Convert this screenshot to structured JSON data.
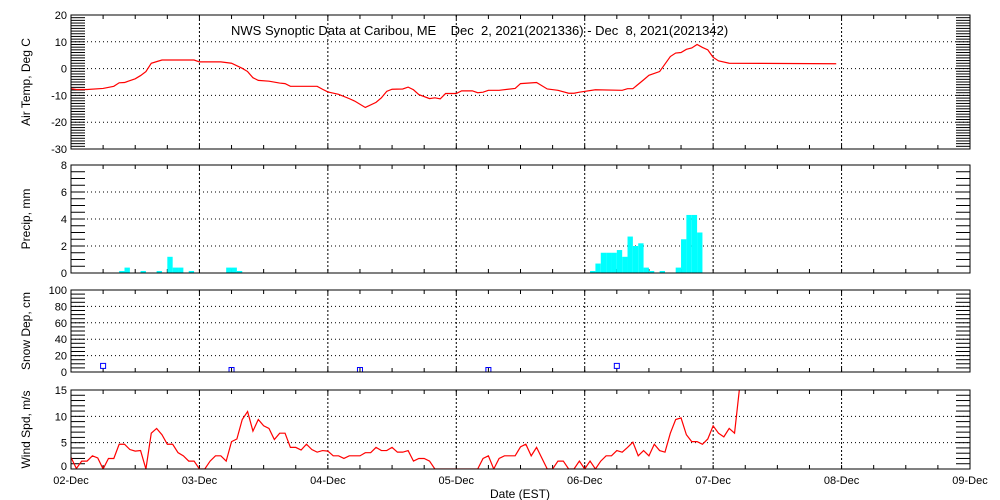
{
  "chart_data": {
    "type": "line",
    "title": "NWS Synoptic Data at Caribou, ME    Dec  2, 2021(2021336) - Dec  8, 2021(2021342)",
    "xlabel": "Date (EST)",
    "xlim": [
      "2021-12-02T00:00",
      "2021-12-09T00:00"
    ],
    "xtick_labels": [
      "02-Dec",
      "03-Dec",
      "04-Dec",
      "05-Dec",
      "06-Dec",
      "07-Dec",
      "08-Dec",
      "09-Dec"
    ],
    "grid": true,
    "colors": {
      "temp": "#ff0000",
      "precip": "#00ffff",
      "snow": "#0000ff",
      "wind": "#ff0000"
    },
    "panels": [
      {
        "id": "temp",
        "type": "line",
        "ylabel": "Air Temp, Deg C",
        "ylim": [
          -30,
          20
        ],
        "yticks": [
          "-30",
          "-20",
          "-10",
          "0",
          "10",
          "20"
        ],
        "minor_step": 1,
        "points": [
          [
            "2021-12-02T00:00",
            -7.5
          ],
          [
            "2021-12-02T01:00",
            -7.8
          ],
          [
            "2021-12-02T03:00",
            -7.8
          ],
          [
            "2021-12-02T06:00",
            -7.4
          ],
          [
            "2021-12-02T08:00",
            -6.6
          ],
          [
            "2021-12-02T09:00",
            -5.3
          ],
          [
            "2021-12-02T10:00",
            -5.2
          ],
          [
            "2021-12-02T12:00",
            -3.8
          ],
          [
            "2021-12-02T13:00",
            -2.6
          ],
          [
            "2021-12-02T14:00",
            -1.1
          ],
          [
            "2021-12-02T15:00",
            2.0
          ],
          [
            "2021-12-02T16:00",
            2.6
          ],
          [
            "2021-12-02T17:00",
            3.2
          ],
          [
            "2021-12-02T23:00",
            3.2
          ],
          [
            "2021-12-03T00:00",
            2.5
          ],
          [
            "2021-12-03T04:00",
            2.5
          ],
          [
            "2021-12-03T06:00",
            2.0
          ],
          [
            "2021-12-03T08:00",
            0.1
          ],
          [
            "2021-12-03T09:00",
            -1.1
          ],
          [
            "2021-12-03T10:00",
            -3.4
          ],
          [
            "2021-12-03T11:00",
            -4.4
          ],
          [
            "2021-12-03T13:00",
            -4.7
          ],
          [
            "2021-12-03T15:00",
            -5.4
          ],
          [
            "2021-12-03T16:00",
            -5.6
          ],
          [
            "2021-12-03T17:00",
            -6.6
          ],
          [
            "2021-12-03T22:00",
            -6.6
          ],
          [
            "2021-12-03T23:00",
            -7.7
          ],
          [
            "2021-12-04T00:00",
            -8.7
          ],
          [
            "2021-12-04T02:00",
            -9.6
          ],
          [
            "2021-12-04T04:00",
            -11.2
          ],
          [
            "2021-12-04T05:00",
            -12.1
          ],
          [
            "2021-12-04T07:00",
            -14.5
          ],
          [
            "2021-12-04T09:00",
            -12.6
          ],
          [
            "2021-12-04T10:00",
            -10.9
          ],
          [
            "2021-12-04T11:00",
            -8.5
          ],
          [
            "2021-12-04T12:00",
            -7.7
          ],
          [
            "2021-12-04T14:00",
            -7.6
          ],
          [
            "2021-12-04T15:00",
            -6.9
          ],
          [
            "2021-12-04T16:00",
            -7.9
          ],
          [
            "2021-12-04T17:00",
            -9.7
          ],
          [
            "2021-12-04T19:00",
            -11.2
          ],
          [
            "2021-12-04T20:00",
            -10.9
          ],
          [
            "2021-12-04T21:00",
            -11.3
          ],
          [
            "2021-12-04T22:00",
            -9.3
          ],
          [
            "2021-12-05T00:00",
            -9.3
          ],
          [
            "2021-12-05T01:00",
            -8.3
          ],
          [
            "2021-12-05T03:00",
            -8.3
          ],
          [
            "2021-12-05T04:00",
            -9.0
          ],
          [
            "2021-12-05T05:00",
            -8.8
          ],
          [
            "2021-12-05T06:00",
            -8.1
          ],
          [
            "2021-12-05T08:00",
            -8.1
          ],
          [
            "2021-12-05T11:00",
            -7.4
          ],
          [
            "2021-12-05T12:00",
            -5.6
          ],
          [
            "2021-12-05T15:00",
            -5.2
          ],
          [
            "2021-12-05T17:00",
            -7.6
          ],
          [
            "2021-12-05T19:00",
            -8.1
          ],
          [
            "2021-12-05T21:00",
            -9.2
          ],
          [
            "2021-12-05T22:00",
            -9.2
          ],
          [
            "2021-12-05T23:00",
            -8.8
          ],
          [
            "2021-12-06T02:00",
            -7.9
          ],
          [
            "2021-12-06T07:00",
            -8.1
          ],
          [
            "2021-12-06T08:00",
            -7.5
          ],
          [
            "2021-12-06T09:00",
            -7.5
          ],
          [
            "2021-12-06T11:00",
            -4.2
          ],
          [
            "2021-12-06T12:00",
            -2.5
          ],
          [
            "2021-12-06T14:00",
            -1.1
          ],
          [
            "2021-12-06T16:00",
            4.5
          ],
          [
            "2021-12-06T17:00",
            5.8
          ],
          [
            "2021-12-06T18:00",
            6.0
          ],
          [
            "2021-12-06T19:00",
            7.2
          ],
          [
            "2021-12-06T20:00",
            7.7
          ],
          [
            "2021-12-06T21:00",
            9.0
          ],
          [
            "2021-12-06T22:00",
            7.9
          ],
          [
            "2021-12-06T23:00",
            7.0
          ],
          [
            "2021-12-07T00:00",
            4.2
          ],
          [
            "2021-12-07T01:00",
            2.9
          ],
          [
            "2021-12-07T03:00",
            2.0
          ],
          [
            "2021-12-07T23:00",
            1.8
          ]
        ]
      },
      {
        "id": "precip",
        "type": "bar",
        "ylabel": "Precip, mm",
        "ylim": [
          0,
          8
        ],
        "yticks": [
          "0",
          "2",
          "4",
          "6",
          "8"
        ],
        "minor_step": 0.5,
        "points": [
          [
            "2021-12-02T09:00",
            0.15
          ],
          [
            "2021-12-02T10:00",
            0.4
          ],
          [
            "2021-12-02T13:00",
            0.15
          ],
          [
            "2021-12-02T16:00",
            0.15
          ],
          [
            "2021-12-02T18:00",
            1.2
          ],
          [
            "2021-12-02T19:00",
            0.4
          ],
          [
            "2021-12-02T20:00",
            0.4
          ],
          [
            "2021-12-02T22:00",
            0.15
          ],
          [
            "2021-12-03T05:00",
            0.4
          ],
          [
            "2021-12-03T06:00",
            0.4
          ],
          [
            "2021-12-03T07:00",
            0.15
          ],
          [
            "2021-12-06T01:00",
            0.15
          ],
          [
            "2021-12-06T02:00",
            0.7
          ],
          [
            "2021-12-06T03:00",
            1.5
          ],
          [
            "2021-12-06T04:00",
            1.5
          ],
          [
            "2021-12-06T05:00",
            1.5
          ],
          [
            "2021-12-06T06:00",
            1.7
          ],
          [
            "2021-12-06T07:00",
            1.2
          ],
          [
            "2021-12-06T08:00",
            2.7
          ],
          [
            "2021-12-06T09:00",
            2.0
          ],
          [
            "2021-12-06T10:00",
            2.2
          ],
          [
            "2021-12-06T11:00",
            0.4
          ],
          [
            "2021-12-06T12:00",
            0.15
          ],
          [
            "2021-12-06T14:00",
            0.15
          ],
          [
            "2021-12-06T17:00",
            0.4
          ],
          [
            "2021-12-06T18:00",
            2.5
          ],
          [
            "2021-12-06T19:00",
            4.3
          ],
          [
            "2021-12-06T20:00",
            4.3
          ],
          [
            "2021-12-06T21:00",
            3.0
          ]
        ]
      },
      {
        "id": "snow",
        "type": "scatter",
        "ylabel": "Snow Dep, cm",
        "ylim": [
          0,
          100
        ],
        "yticks": [
          "0",
          "20",
          "40",
          "60",
          "80",
          "100"
        ],
        "minor_step": 5,
        "points": [
          [
            "2021-12-02T06:00",
            5
          ],
          [
            "2021-12-03T06:00",
            0
          ],
          [
            "2021-12-04T06:00",
            0
          ],
          [
            "2021-12-05T06:00",
            0
          ],
          [
            "2021-12-06T06:00",
            5
          ]
        ]
      },
      {
        "id": "wind",
        "type": "line",
        "ylabel": "Wind Spd, m/s",
        "ylim": [
          0,
          15
        ],
        "yticks": [
          "0",
          "5",
          "10",
          "15"
        ],
        "minor_step": 1,
        "points": [
          [
            "2021-12-02T00:00",
            2.2
          ],
          [
            "2021-12-02T01:00",
            0.1
          ],
          [
            "2021-12-02T02:00",
            1.5
          ],
          [
            "2021-12-02T03:00",
            1.5
          ],
          [
            "2021-12-02T04:00",
            2.5
          ],
          [
            "2021-12-02T05:00",
            2.1
          ],
          [
            "2021-12-02T06:00",
            0
          ],
          [
            "2021-12-02T07:00",
            2.0
          ],
          [
            "2021-12-02T08:00",
            2.0
          ],
          [
            "2021-12-02T09:00",
            4.7
          ],
          [
            "2021-12-02T10:00",
            4.7
          ],
          [
            "2021-12-02T11:00",
            3.7
          ],
          [
            "2021-12-02T12:00",
            3.4
          ],
          [
            "2021-12-02T13:00",
            3.5
          ],
          [
            "2021-12-02T14:00",
            0
          ],
          [
            "2021-12-02T15:00",
            6.8
          ],
          [
            "2021-12-02T16:00",
            7.7
          ],
          [
            "2021-12-02T17:00",
            6.5
          ],
          [
            "2021-12-02T18:00",
            4.7
          ],
          [
            "2021-12-02T19:00",
            4.7
          ],
          [
            "2021-12-02T20:00",
            3.1
          ],
          [
            "2021-12-02T21:00",
            2.5
          ],
          [
            "2021-12-02T22:00",
            1.5
          ],
          [
            "2021-12-02T23:00",
            1.5
          ],
          [
            "2021-12-03T00:00",
            0
          ],
          [
            "2021-12-03T01:00",
            0
          ],
          [
            "2021-12-03T02:00",
            1.5
          ],
          [
            "2021-12-03T03:00",
            2.5
          ],
          [
            "2021-12-03T04:00",
            2.5
          ],
          [
            "2021-12-03T05:00",
            1.5
          ],
          [
            "2021-12-03T06:00",
            5.2
          ],
          [
            "2021-12-03T07:00",
            5.7
          ],
          [
            "2021-12-03T08:00",
            9.4
          ],
          [
            "2021-12-03T09:00",
            10.9
          ],
          [
            "2021-12-03T10:00",
            7.2
          ],
          [
            "2021-12-03T11:00",
            9.4
          ],
          [
            "2021-12-03T12:00",
            8.2
          ],
          [
            "2021-12-03T13:00",
            7.7
          ],
          [
            "2021-12-03T14:00",
            5.6
          ],
          [
            "2021-12-03T15:00",
            6.8
          ],
          [
            "2021-12-03T16:00",
            6.8
          ],
          [
            "2021-12-03T17:00",
            4.1
          ],
          [
            "2021-12-03T18:00",
            4.1
          ],
          [
            "2021-12-03T19:00",
            3.6
          ],
          [
            "2021-12-03T20:00",
            4.7
          ],
          [
            "2021-12-03T21:00",
            3.7
          ],
          [
            "2021-12-03T22:00",
            3.2
          ],
          [
            "2021-12-03T23:00",
            3.5
          ],
          [
            "2021-12-04T00:00",
            3.4
          ],
          [
            "2021-12-04T01:00",
            2.5
          ],
          [
            "2021-12-04T02:00",
            2.5
          ],
          [
            "2021-12-04T03:00",
            2.0
          ],
          [
            "2021-12-04T04:00",
            2.5
          ],
          [
            "2021-12-04T06:00",
            2.5
          ],
          [
            "2021-12-04T07:00",
            3.1
          ],
          [
            "2021-12-04T08:00",
            3.1
          ],
          [
            "2021-12-04T09:00",
            4.1
          ],
          [
            "2021-12-04T10:00",
            3.5
          ],
          [
            "2021-12-04T11:00",
            3.5
          ],
          [
            "2021-12-04T12:00",
            4.1
          ],
          [
            "2021-12-04T13:00",
            3.2
          ],
          [
            "2021-12-04T14:00",
            3.2
          ],
          [
            "2021-12-04T15:00",
            3.5
          ],
          [
            "2021-12-04T16:00",
            1.5
          ],
          [
            "2021-12-04T17:00",
            2.0
          ],
          [
            "2021-12-04T18:00",
            2.0
          ],
          [
            "2021-12-04T19:00",
            1.5
          ],
          [
            "2021-12-04T20:00",
            0
          ],
          [
            "2021-12-05T04:00",
            0
          ],
          [
            "2021-12-05T05:00",
            2.0
          ],
          [
            "2021-12-05T06:00",
            2.5
          ],
          [
            "2021-12-05T07:00",
            0
          ],
          [
            "2021-12-05T08:00",
            2.0
          ],
          [
            "2021-12-05T09:00",
            2.5
          ],
          [
            "2021-12-05T11:00",
            2.5
          ],
          [
            "2021-12-05T12:00",
            4.2
          ],
          [
            "2021-12-05T13:00",
            4.7
          ],
          [
            "2021-12-05T14:00",
            2.5
          ],
          [
            "2021-12-05T15:00",
            4.1
          ],
          [
            "2021-12-05T17:00",
            0
          ],
          [
            "2021-12-05T18:00",
            0
          ],
          [
            "2021-12-05T19:00",
            1.5
          ],
          [
            "2021-12-05T20:00",
            1.5
          ],
          [
            "2021-12-05T21:00",
            0
          ],
          [
            "2021-12-05T22:00",
            0
          ],
          [
            "2021-12-05T23:00",
            1.5
          ],
          [
            "2021-12-06T00:00",
            0
          ],
          [
            "2021-12-06T01:00",
            1.5
          ],
          [
            "2021-12-06T02:00",
            0
          ],
          [
            "2021-12-06T03:00",
            1.5
          ],
          [
            "2021-12-06T04:00",
            2.5
          ],
          [
            "2021-12-06T05:00",
            2.5
          ],
          [
            "2021-12-06T06:00",
            3.5
          ],
          [
            "2021-12-06T07:00",
            3.2
          ],
          [
            "2021-12-06T08:00",
            4.1
          ],
          [
            "2021-12-06T09:00",
            5.1
          ],
          [
            "2021-12-06T10:00",
            2.5
          ],
          [
            "2021-12-06T11:00",
            3.5
          ],
          [
            "2021-12-06T12:00",
            2.5
          ],
          [
            "2021-12-06T13:00",
            4.7
          ],
          [
            "2021-12-06T14:00",
            3.5
          ],
          [
            "2021-12-06T15:00",
            3.2
          ],
          [
            "2021-12-06T16:00",
            6.8
          ],
          [
            "2021-12-06T17:00",
            9.4
          ],
          [
            "2021-12-06T18:00",
            9.7
          ],
          [
            "2021-12-06T19:00",
            6.5
          ],
          [
            "2021-12-06T20:00",
            5.2
          ],
          [
            "2021-12-06T21:00",
            5.2
          ],
          [
            "2021-12-06T22:00",
            4.7
          ],
          [
            "2021-12-06T23:00",
            5.7
          ],
          [
            "2021-12-07T00:00",
            8.2
          ],
          [
            "2021-12-07T01:00",
            6.8
          ],
          [
            "2021-12-07T02:00",
            6.1
          ],
          [
            "2021-12-07T03:00",
            7.7
          ],
          [
            "2021-12-07T04:00",
            6.8
          ],
          [
            "2021-12-07T05:00",
            16
          ]
        ]
      }
    ]
  }
}
